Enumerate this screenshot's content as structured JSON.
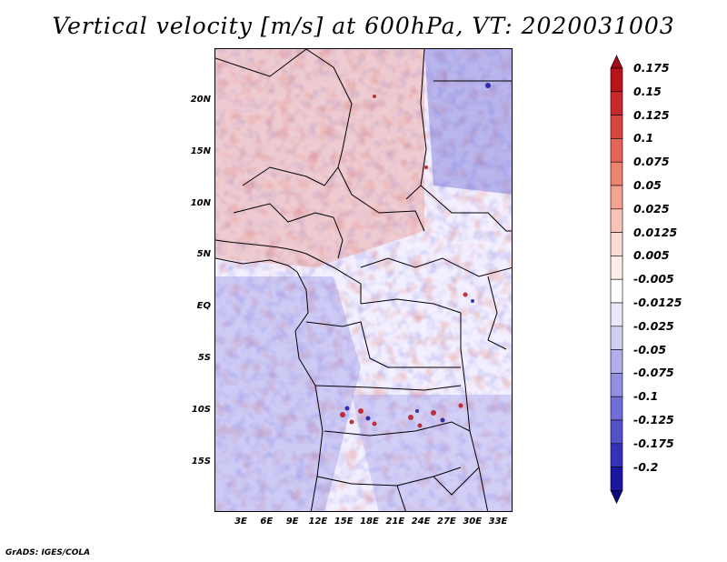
{
  "title": "Vertical velocity [m/s] at 600hPa, VT: 2020031003",
  "credit": "GrADS: IGES/COLA",
  "lat_labels": [
    "20N",
    "15N",
    "10N",
    "5N",
    "EQ",
    "5S",
    "10S",
    "15S"
  ],
  "lon_labels": [
    "3E",
    "6E",
    "9E",
    "12E",
    "15E",
    "18E",
    "21E",
    "24E",
    "27E",
    "30E",
    "33E"
  ],
  "colorbar": {
    "labels": [
      "0.175",
      "0.15",
      "0.125",
      "0.1",
      "0.075",
      "0.05",
      "0.025",
      "0.0125",
      "0.005",
      "-0.005",
      "-0.0125",
      "-0.025",
      "-0.05",
      "-0.075",
      "-0.1",
      "-0.125",
      "-0.175",
      "-0.2"
    ],
    "colors": [
      "#b8151b",
      "#c82a2c",
      "#d94640",
      "#e46455",
      "#ed8470",
      "#f4a391",
      "#f8c4b7",
      "#fbdcd4",
      "#fdeeea",
      "#ffffff",
      "#e9e8f9",
      "#d0cff3",
      "#b0aeeb",
      "#928fe3",
      "#716ed8",
      "#5451cb",
      "#3532b8",
      "#1a169f",
      "#0d0a8a",
      "#800000"
    ]
  },
  "legend_extremes": {
    "top_arrow_color": "#a00d14",
    "bottom_arrow_color": "#0b0880"
  }
}
